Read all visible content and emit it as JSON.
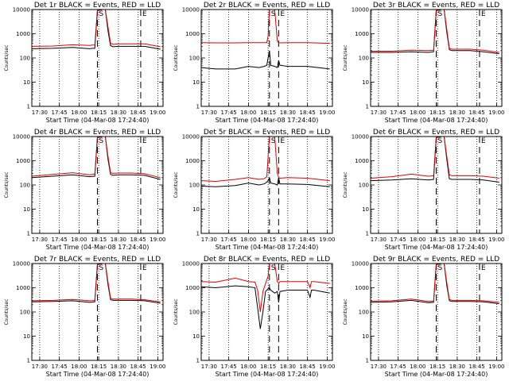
{
  "chart_data": [
    {
      "type": "line",
      "title": "Det 1r BLACK = Events, RED = LLD",
      "xlabel": "Start Time (04-Mar-08 17:24:40)",
      "ylabel": "Counts/sec",
      "yscale": "log",
      "ylim": [
        1,
        10000
      ],
      "xlim": [
        "17:24",
        "19:04"
      ],
      "xticks": [
        "17:30",
        "17:45",
        "18:00",
        "18:15",
        "18:30",
        "18:45",
        "19:00"
      ],
      "yticks": [
        "1",
        "10",
        "100",
        "1000",
        "10000"
      ],
      "markers": {
        "S": "18:14",
        "E": "18:47"
      },
      "grid": "vertical-dotted",
      "series": [
        {
          "color": "#000000",
          "x": [
            "17:24",
            "17:40",
            "17:55",
            "18:08",
            "18:10",
            "18:12",
            "18:14",
            "18:18",
            "18:20",
            "18:22",
            "18:24",
            "18:26",
            "18:30",
            "18:40",
            "18:50",
            "19:02"
          ],
          "y": [
            240,
            250,
            270,
            240,
            250,
            250,
            9000,
            10000,
            10000,
            1400,
            320,
            290,
            300,
            300,
            300,
            230
          ]
        },
        {
          "color": "#e00000",
          "x": [
            "17:24",
            "17:40",
            "17:55",
            "18:08",
            "18:10",
            "18:12",
            "18:14",
            "18:18",
            "18:20",
            "18:22",
            "18:24",
            "18:26",
            "18:30",
            "18:40",
            "18:50",
            "19:02"
          ],
          "y": [
            300,
            310,
            350,
            330,
            340,
            340,
            10000,
            10000,
            10000,
            2000,
            400,
            360,
            380,
            380,
            380,
            290
          ]
        }
      ]
    },
    {
      "type": "line",
      "title": "Det 2r BLACK = Events, RED = LLD",
      "xlabel": "Start Time (04-Mar-08 17:24:40)",
      "ylabel": "Counts/sec",
      "yscale": "log",
      "ylim": [
        1,
        10000
      ],
      "xlim": [
        "17:24",
        "19:04"
      ],
      "xticks": [
        "17:30",
        "17:45",
        "18:00",
        "18:15",
        "18:30",
        "18:45",
        "19:00"
      ],
      "yticks": [
        "1",
        "10",
        "100",
        "1000",
        "10000"
      ],
      "markers": {
        "S": "18:16",
        "E": "18:23"
      },
      "grid": "vertical-dotted",
      "series": [
        {
          "color": "#000000",
          "x": [
            "17:24",
            "17:35",
            "17:50",
            "18:00",
            "18:08",
            "18:12",
            "18:14",
            "18:15",
            "18:16",
            "18:17",
            "18:20",
            "18:22",
            "18:23",
            "18:24",
            "18:30",
            "18:45",
            "19:02"
          ],
          "y": [
            40,
            35,
            35,
            45,
            40,
            45,
            50,
            100,
            200,
            50,
            45,
            40,
            80,
            50,
            45,
            45,
            35
          ]
        },
        {
          "color": "#e00000",
          "x": [
            "17:24",
            "17:35",
            "17:50",
            "18:00",
            "18:08",
            "18:12",
            "18:14",
            "18:15",
            "18:16",
            "18:17",
            "18:20",
            "18:22",
            "18:23",
            "18:24",
            "18:30",
            "18:45",
            "19:02"
          ],
          "y": [
            430,
            420,
            420,
            430,
            430,
            430,
            430,
            800,
            10000,
            10000,
            10000,
            500,
            420,
            420,
            430,
            430,
            400
          ]
        }
      ]
    },
    {
      "type": "line",
      "title": "Det 3r BLACK = Events, RED = LLD",
      "xlabel": "Start Time (04-Mar-08 17:24:40)",
      "ylabel": "Counts/sec",
      "yscale": "log",
      "ylim": [
        1,
        10000
      ],
      "xlim": [
        "17:24",
        "19:04"
      ],
      "xticks": [
        "17:30",
        "17:45",
        "18:00",
        "18:15",
        "18:30",
        "18:45",
        "19:00"
      ],
      "yticks": [
        "1",
        "10",
        "100",
        "1000",
        "10000"
      ],
      "markers": {
        "S": "18:14",
        "E": "18:47"
      },
      "grid": "vertical-dotted",
      "series": [
        {
          "color": "#000000",
          "x": [
            "17:24",
            "17:40",
            "17:55",
            "18:08",
            "18:10",
            "18:12",
            "18:14",
            "18:18",
            "18:20",
            "18:22",
            "18:24",
            "18:26",
            "18:30",
            "18:40",
            "18:50",
            "19:02"
          ],
          "y": [
            170,
            170,
            180,
            170,
            175,
            180,
            9000,
            10000,
            10000,
            1200,
            220,
            200,
            200,
            200,
            180,
            150
          ]
        },
        {
          "color": "#e00000",
          "x": [
            "17:24",
            "17:40",
            "17:55",
            "18:08",
            "18:10",
            "18:12",
            "18:14",
            "18:18",
            "18:20",
            "18:22",
            "18:24",
            "18:26",
            "18:30",
            "18:40",
            "18:50",
            "19:02"
          ],
          "y": [
            190,
            190,
            210,
            200,
            205,
            210,
            10000,
            10000,
            10000,
            1600,
            250,
            230,
            230,
            230,
            210,
            170
          ]
        }
      ]
    },
    {
      "type": "line",
      "title": "Det 4r BLACK = Events, RED = LLD",
      "xlabel": "Start Time (04-Mar-08 17:24:40)",
      "ylabel": "Counts/sec",
      "yscale": "log",
      "ylim": [
        1,
        10000
      ],
      "xlim": [
        "17:24",
        "19:04"
      ],
      "xticks": [
        "17:30",
        "17:45",
        "18:00",
        "18:15",
        "18:30",
        "18:45",
        "19:00"
      ],
      "yticks": [
        "1",
        "10",
        "100",
        "1000",
        "10000"
      ],
      "markers": {
        "S": "18:14",
        "E": "18:47"
      },
      "grid": "vertical-dotted",
      "series": [
        {
          "color": "#000000",
          "x": [
            "17:24",
            "17:40",
            "17:55",
            "18:08",
            "18:10",
            "18:12",
            "18:14",
            "18:18",
            "18:20",
            "18:22",
            "18:24",
            "18:26",
            "18:30",
            "18:40",
            "18:50",
            "19:02"
          ],
          "y": [
            200,
            230,
            260,
            220,
            225,
            230,
            9000,
            10000,
            10000,
            1200,
            270,
            250,
            260,
            260,
            250,
            170
          ]
        },
        {
          "color": "#e00000",
          "x": [
            "17:24",
            "17:40",
            "17:55",
            "18:08",
            "18:10",
            "18:12",
            "18:14",
            "18:18",
            "18:20",
            "18:22",
            "18:24",
            "18:26",
            "18:30",
            "18:40",
            "18:50",
            "19:02"
          ],
          "y": [
            230,
            270,
            320,
            260,
            270,
            280,
            10000,
            10000,
            10000,
            1600,
            320,
            300,
            310,
            310,
            290,
            200
          ]
        }
      ]
    },
    {
      "type": "line",
      "title": "Det 5r BLACK = Events, RED = LLD",
      "xlabel": "Start Time (04-Mar-08 17:24:40)",
      "ylabel": "Counts/sec",
      "yscale": "log",
      "ylim": [
        1,
        10000
      ],
      "xlim": [
        "17:24",
        "19:04"
      ],
      "xticks": [
        "17:30",
        "17:45",
        "18:00",
        "18:15",
        "18:30",
        "18:45",
        "19:00"
      ],
      "yticks": [
        "1",
        "10",
        "100",
        "1000",
        "10000"
      ],
      "markers": {
        "S": "18:16",
        "E": "18:23"
      },
      "grid": "vertical-dotted",
      "series": [
        {
          "color": "#000000",
          "x": [
            "17:24",
            "17:35",
            "17:50",
            "18:00",
            "18:08",
            "18:12",
            "18:14",
            "18:15",
            "18:16",
            "18:17",
            "18:20",
            "18:22",
            "18:23",
            "18:24",
            "18:30",
            "18:45",
            "19:02"
          ],
          "y": [
            90,
            85,
            95,
            120,
            100,
            110,
            130,
            150,
            200,
            120,
            110,
            100,
            200,
            110,
            110,
            105,
            85
          ]
        },
        {
          "color": "#e00000",
          "x": [
            "17:24",
            "17:35",
            "17:50",
            "18:00",
            "18:08",
            "18:12",
            "18:14",
            "18:15",
            "18:16",
            "18:17",
            "18:20",
            "18:22",
            "18:23",
            "18:24",
            "18:30",
            "18:45",
            "19:02"
          ],
          "y": [
            150,
            140,
            170,
            200,
            170,
            180,
            220,
            1500,
            10000,
            10000,
            10000,
            300,
            200,
            190,
            200,
            190,
            150
          ]
        }
      ]
    },
    {
      "type": "line",
      "title": "Det 6r BLACK = Events, RED = LLD",
      "xlabel": "Start Time (04-Mar-08 17:24:40)",
      "ylabel": "Counts/sec",
      "yscale": "log",
      "ylim": [
        1,
        10000
      ],
      "xlim": [
        "17:24",
        "19:04"
      ],
      "xticks": [
        "17:30",
        "17:45",
        "18:00",
        "18:15",
        "18:30",
        "18:45",
        "19:00"
      ],
      "yticks": [
        "1",
        "10",
        "100",
        "1000",
        "10000"
      ],
      "markers": {
        "S": "18:14",
        "E": "18:47"
      },
      "grid": "vertical-dotted",
      "series": [
        {
          "color": "#000000",
          "x": [
            "17:24",
            "17:40",
            "17:55",
            "18:08",
            "18:10",
            "18:12",
            "18:14",
            "18:18",
            "18:20",
            "18:22",
            "18:24",
            "18:26",
            "18:30",
            "18:40",
            "18:50",
            "19:02"
          ],
          "y": [
            150,
            160,
            180,
            160,
            165,
            170,
            9000,
            10000,
            10000,
            1200,
            180,
            170,
            170,
            170,
            160,
            130
          ]
        },
        {
          "color": "#e00000",
          "x": [
            "17:24",
            "17:40",
            "17:55",
            "18:08",
            "18:10",
            "18:12",
            "18:14",
            "18:18",
            "18:20",
            "18:22",
            "18:24",
            "18:26",
            "18:30",
            "18:40",
            "18:50",
            "19:02"
          ],
          "y": [
            190,
            220,
            280,
            230,
            235,
            240,
            10000,
            10000,
            10000,
            1600,
            260,
            240,
            240,
            240,
            230,
            190
          ]
        }
      ]
    },
    {
      "type": "line",
      "title": "Det 7r BLACK = Events, RED = LLD",
      "xlabel": "Start Time (04-Mar-08 17:24:40)",
      "ylabel": "Counts/sec",
      "yscale": "log",
      "ylim": [
        1,
        10000
      ],
      "xlim": [
        "17:24",
        "19:04"
      ],
      "xticks": [
        "17:30",
        "17:45",
        "18:00",
        "18:15",
        "18:30",
        "18:45",
        "19:00"
      ],
      "yticks": [
        "1",
        "10",
        "100",
        "1000",
        "10000"
      ],
      "markers": {
        "S": "18:14",
        "E": "18:47"
      },
      "grid": "vertical-dotted",
      "series": [
        {
          "color": "#000000",
          "x": [
            "17:24",
            "17:40",
            "17:55",
            "18:08",
            "18:10",
            "18:12",
            "18:14",
            "18:18",
            "18:20",
            "18:22",
            "18:24",
            "18:26",
            "18:30",
            "18:40",
            "18:50",
            "19:02"
          ],
          "y": [
            260,
            270,
            290,
            250,
            255,
            260,
            9000,
            10000,
            10000,
            1400,
            320,
            300,
            300,
            300,
            290,
            230
          ]
        },
        {
          "color": "#e00000",
          "x": [
            "17:24",
            "17:40",
            "17:55",
            "18:08",
            "18:10",
            "18:12",
            "18:14",
            "18:18",
            "18:20",
            "18:22",
            "18:24",
            "18:26",
            "18:30",
            "18:40",
            "18:50",
            "19:02"
          ],
          "y": [
            290,
            300,
            330,
            290,
            295,
            300,
            10000,
            10000,
            10000,
            1800,
            370,
            340,
            340,
            340,
            320,
            260
          ]
        }
      ]
    },
    {
      "type": "line",
      "title": "Det 8r BLACK = Events, RED = LLD",
      "xlabel": "Start Time (04-Mar-08 17:24:40)",
      "ylabel": "Counts/sec",
      "yscale": "log",
      "ylim": [
        1,
        10000
      ],
      "xlim": [
        "17:24",
        "19:04"
      ],
      "xticks": [
        "17:30",
        "17:45",
        "18:00",
        "18:15",
        "18:30",
        "18:45",
        "19:00"
      ],
      "yticks": [
        "1",
        "10",
        "100",
        "1000",
        "10000"
      ],
      "markers": {
        "S": "18:16",
        "E": "18:23"
      },
      "grid": "vertical-dotted",
      "series": [
        {
          "color": "#000000",
          "x": [
            "17:24",
            "17:35",
            "17:50",
            "18:00",
            "18:05",
            "18:07",
            "18:09",
            "18:11",
            "18:13",
            "18:15",
            "18:16",
            "18:17",
            "18:20",
            "18:22",
            "18:23",
            "18:24",
            "18:30",
            "18:45",
            "18:47",
            "18:48",
            "18:50",
            "19:02"
          ],
          "y": [
            1100,
            1000,
            1200,
            1100,
            1000,
            150,
            20,
            100,
            700,
            900,
            1000,
            800,
            600,
            700,
            250,
            700,
            800,
            800,
            400,
            800,
            800,
            600
          ]
        },
        {
          "color": "#e00000",
          "x": [
            "17:24",
            "17:35",
            "17:50",
            "18:00",
            "18:05",
            "18:07",
            "18:09",
            "18:11",
            "18:13",
            "18:15",
            "18:16",
            "18:17",
            "18:20",
            "18:22",
            "18:23",
            "18:24",
            "18:30",
            "18:45",
            "18:47",
            "18:48",
            "18:50",
            "19:02"
          ],
          "y": [
            1800,
            1700,
            2500,
            1800,
            1700,
            800,
            100,
            700,
            1500,
            3000,
            10000,
            10000,
            10000,
            1800,
            1500,
            1800,
            1800,
            1800,
            1000,
            1800,
            1800,
            1500
          ]
        }
      ]
    },
    {
      "type": "line",
      "title": "Det 9r BLACK = Events, RED = LLD",
      "xlabel": "Start Time (04-Mar-08 17:24:40)",
      "ylabel": "Counts/sec",
      "yscale": "log",
      "ylim": [
        1,
        10000
      ],
      "xlim": [
        "17:24",
        "19:04"
      ],
      "xticks": [
        "17:30",
        "17:45",
        "18:00",
        "18:15",
        "18:30",
        "18:45",
        "19:00"
      ],
      "yticks": [
        "1",
        "10",
        "100",
        "1000",
        "10000"
      ],
      "markers": {
        "S": "18:14",
        "E": "18:47"
      },
      "grid": "vertical-dotted",
      "series": [
        {
          "color": "#000000",
          "x": [
            "17:24",
            "17:40",
            "17:55",
            "18:08",
            "18:10",
            "18:12",
            "18:14",
            "18:18",
            "18:20",
            "18:22",
            "18:24",
            "18:26",
            "18:30",
            "18:40",
            "18:50",
            "19:02"
          ],
          "y": [
            250,
            260,
            300,
            240,
            245,
            250,
            9000,
            10000,
            10000,
            1300,
            290,
            270,
            270,
            270,
            260,
            220
          ]
        },
        {
          "color": "#e00000",
          "x": [
            "17:24",
            "17:40",
            "17:55",
            "18:08",
            "18:10",
            "18:12",
            "18:14",
            "18:18",
            "18:20",
            "18:22",
            "18:24",
            "18:26",
            "18:30",
            "18:40",
            "18:50",
            "19:02"
          ],
          "y": [
            280,
            290,
            340,
            270,
            275,
            280,
            10000,
            10000,
            10000,
            1700,
            330,
            300,
            300,
            300,
            290,
            250
          ]
        }
      ]
    }
  ]
}
